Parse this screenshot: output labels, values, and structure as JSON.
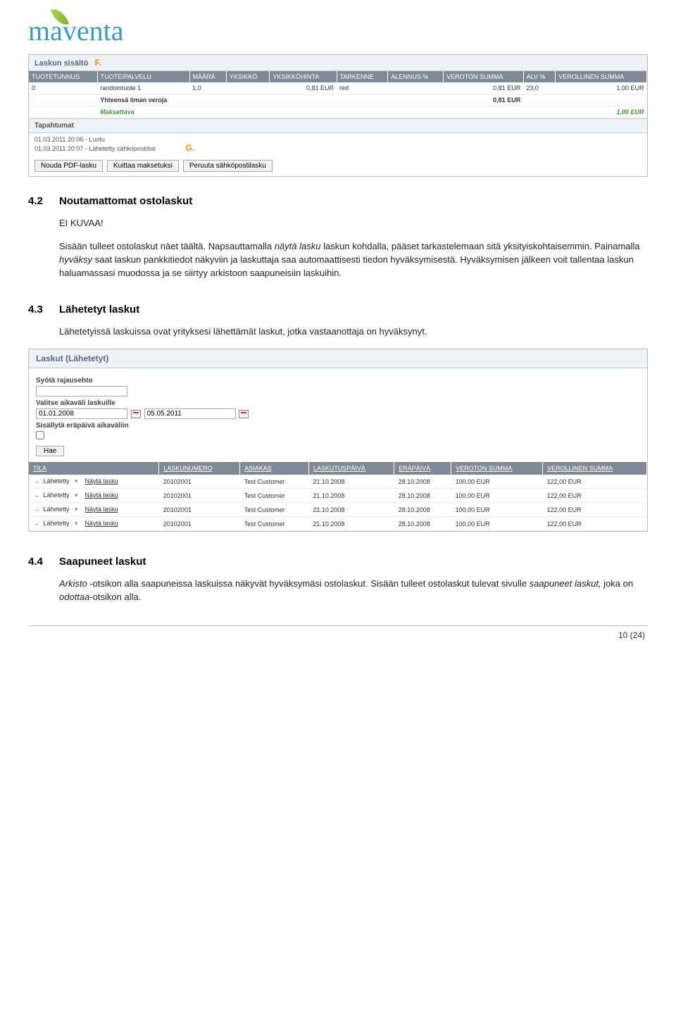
{
  "logo_text": "maventa",
  "invoice_content": {
    "section_label": "Laskun sisältö",
    "f_marker": "F.",
    "columns": [
      "TUOTETUNNUS",
      "TUOTE/PALVELU",
      "MÄÄRÄ",
      "YKSIKKÖ",
      "YKSIKKÖHINTA",
      "TARKENNE",
      "ALENNUS %",
      "VEROTON SUMMA",
      "ALV %",
      "VEROLLINEN SUMMA"
    ],
    "row": {
      "tunnus": "0",
      "palvelu": "randomtuote 1",
      "maara": "1,0",
      "yksikko": "",
      "yksikkoh": "0,81 EUR",
      "tarkenne": "red",
      "alennus": "",
      "veroton": "0,81 EUR",
      "alv": "23,0",
      "verollinen": "1,00 EUR"
    },
    "total1_label": "Yhteensä ilman veroja",
    "total1_value": "0,81 EUR",
    "total2_label": "Maksettava",
    "total2_value": "1,00 EUR"
  },
  "events": {
    "heading": "Tapahtumat",
    "e1": "01.03.2011 20:06 - Luotu",
    "e2": "01.03.2011 20:07 - Lähetetty sähköpostitse",
    "g_marker": "G."
  },
  "buttons": {
    "pdf": "Nouda PDF-lasku",
    "kuittaa": "Kuittaa maksetuksi",
    "peruuta": "Peruuta sähköpostilasku"
  },
  "sections": {
    "s42_num": "4.2",
    "s42_title": "Noutamattomat ostolaskut",
    "s42_p1": "EI KUVAA!",
    "s42_p2a": "Sisään tulleet ostolaskut näet täältä. Napsauttamalla ",
    "s42_p2b": "näytä lasku",
    "s42_p2c": " laskun kohdalla, pääset tarkastelemaan sitä yksityiskohtaisemmin. Painamalla ",
    "s42_p2d": "hyväksy",
    "s42_p2e": " saat laskun pankkitiedot näkyviin ja laskuttaja saa automaattisesti tiedon hyväksymisestä. Hyväksymisen jälkeen voit tallentaa laskun haluamassasi muodossa ja se siirtyy arkistoon saapuneisiin laskuihin.",
    "s43_num": "4.3",
    "s43_title": "Lähetetyt laskut",
    "s43_p": "Lähetetyissä laskuissa ovat yrityksesi lähettämät laskut, jotka vastaanottaja on hyväksynyt.",
    "s44_num": "4.4",
    "s44_title": "Saapuneet laskut",
    "s44_p1a": "Arkisto ",
    "s44_p1b": "-otsikon alla saapuneissa laskuissa näkyvät hyväksymäsi ostolaskut. Sisään tulleet ostolaskut tulevat sivulle ",
    "s44_p1c": "saapuneet laskut,",
    "s44_p1d": " joka on ",
    "s44_p1e": "odottaa",
    "s44_p1f": "-otsikon alla."
  },
  "sent": {
    "title": "Laskut (Lähetetyt)",
    "filter_label": "Syötä rajausehto",
    "date_label": "Valitse aikaväli laskuille",
    "date_from": "01.01.2008",
    "date_to": "05.05.2011",
    "include_due": "Sisällytä eräpäivä aikaväliin",
    "hae": "Hae",
    "columns": [
      "TILA",
      "LASKUNUMERO",
      "ASIAKAS",
      "LASKUTUSPÄIVÄ",
      "ERÄPÄIVÄ",
      "VEROTON SUMMA",
      "VEROLLINEN SUMMA"
    ],
    "rows": [
      {
        "tila": "Lähetetty",
        "link": "Näytä lasku",
        "num": "20102001",
        "asiakas": "Test Customer",
        "lpvm": "21.10.2008",
        "epvm": "28.10.2008",
        "veroton": "100,00 EUR",
        "verollinen": "122,00 EUR"
      },
      {
        "tila": "Lähetetty",
        "link": "Näytä lasku",
        "num": "20102001",
        "asiakas": "Test Customer",
        "lpvm": "21.10.2008",
        "epvm": "28.10.2008",
        "veroton": "100,00 EUR",
        "verollinen": "122,00 EUR"
      },
      {
        "tila": "Lähetetty",
        "link": "Näytä lasku",
        "num": "20102001",
        "asiakas": "Test Customer",
        "lpvm": "21.10.2008",
        "epvm": "28.10.2008",
        "veroton": "100,00 EUR",
        "verollinen": "122,00 EUR"
      },
      {
        "tila": "Lähetetty",
        "link": "Näytä lasku",
        "num": "20102001",
        "asiakas": "Test Customer",
        "lpvm": "21.10.2008",
        "epvm": "28.10.2008",
        "veroton": "100,00 EUR",
        "verollinen": "122,00 EUR"
      }
    ]
  },
  "page_num": "10 (24)"
}
